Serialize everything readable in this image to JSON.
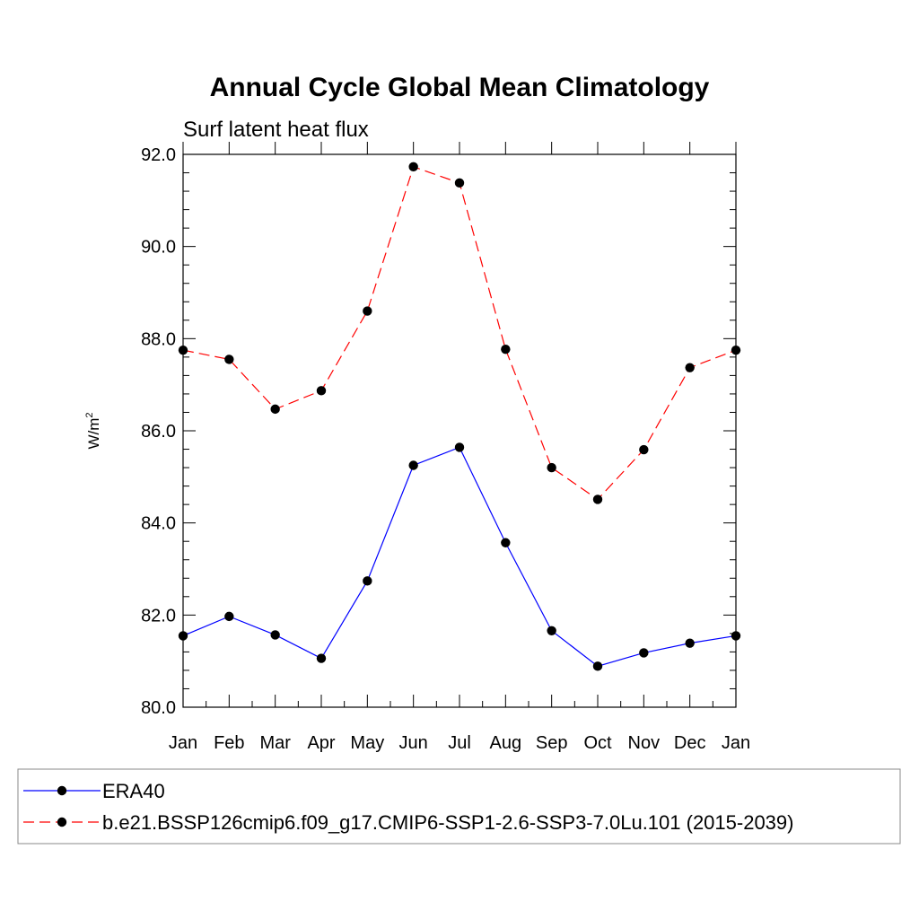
{
  "chart_data": {
    "type": "line",
    "title": "Annual Cycle Global Mean Climatology",
    "subtitle": "Surf latent heat flux",
    "ylabel": "W/m",
    "ylabel_superscript": "2",
    "xlabel": "",
    "categories": [
      "Jan",
      "Feb",
      "Mar",
      "Apr",
      "May",
      "Jun",
      "Jul",
      "Aug",
      "Sep",
      "Oct",
      "Nov",
      "Dec",
      "Jan"
    ],
    "ylim": [
      80.0,
      92.0
    ],
    "yticks": [
      "80.0",
      "82.0",
      "84.0",
      "86.0",
      "88.0",
      "90.0",
      "92.0"
    ],
    "grid": false,
    "legend_position": "bottom",
    "series": [
      {
        "name": "ERA40",
        "color": "#0000ff",
        "dash": "solid",
        "marker": "filled-circle",
        "values": [
          81.55,
          81.97,
          81.57,
          81.06,
          82.74,
          85.25,
          85.64,
          83.57,
          81.66,
          80.89,
          81.18,
          81.39,
          81.55
        ]
      },
      {
        "name": "b.e21.BSSP126cmip6.f09_g17.CMIP6-SSP1-2.6-SSP3-7.0Lu.101 (2015-2039)",
        "color": "#ff0000",
        "dash": "dashed",
        "marker": "filled-circle",
        "values": [
          87.75,
          87.55,
          86.47,
          86.87,
          88.6,
          91.73,
          91.38,
          87.77,
          85.2,
          84.51,
          85.59,
          87.37,
          87.75
        ]
      }
    ]
  }
}
